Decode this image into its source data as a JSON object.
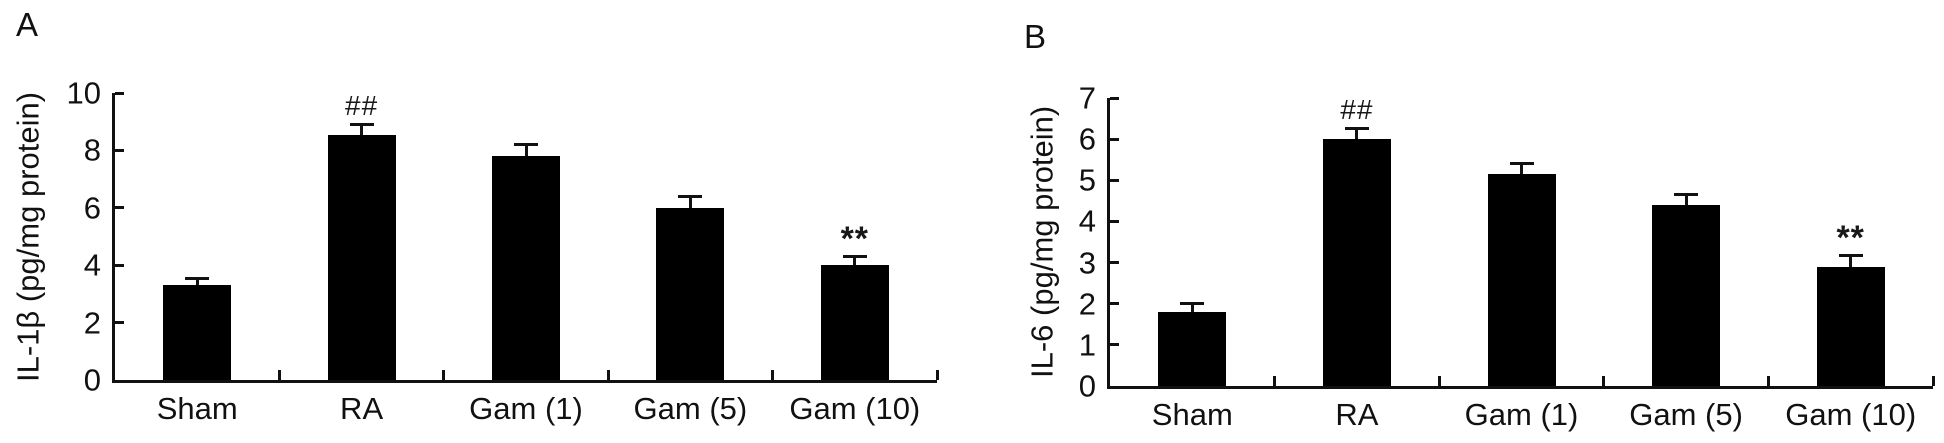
{
  "figure": {
    "background_color": "#ffffff",
    "bar_color": "#000000",
    "axis_color": "#111111",
    "text_color": "#111111"
  },
  "chart_data": [
    {
      "type": "bar",
      "panel_label": "A",
      "title": "",
      "xlabel": "",
      "ylabel": "IL-1β (pg/mg protein)",
      "categories": [
        "Sham",
        "RA",
        "Gam (1)",
        "Gam (5)",
        "Gam (10)"
      ],
      "values": [
        3.3,
        8.55,
        7.8,
        6.0,
        4.0
      ],
      "errors": [
        0.3,
        0.4,
        0.45,
        0.45,
        0.35
      ],
      "annotations": [
        {
          "category": "RA",
          "text": "##"
        },
        {
          "category": "Gam (10)",
          "text": "**"
        }
      ],
      "ylim": [
        0,
        10
      ],
      "yticks": [
        0,
        2,
        4,
        6,
        8,
        10
      ],
      "grid": false,
      "legend": "none"
    },
    {
      "type": "bar",
      "panel_label": "B",
      "title": "",
      "xlabel": "",
      "ylabel": "IL-6 (pg/mg protein)",
      "categories": [
        "Sham",
        "RA",
        "Gam (1)",
        "Gam (5)",
        "Gam (10)"
      ],
      "values": [
        1.8,
        6.0,
        5.15,
        4.4,
        2.9
      ],
      "errors": [
        0.25,
        0.3,
        0.3,
        0.3,
        0.3
      ],
      "annotations": [
        {
          "category": "RA",
          "text": "##"
        },
        {
          "category": "Gam (10)",
          "text": "**"
        }
      ],
      "ylim": [
        0,
        7
      ],
      "yticks": [
        0,
        1,
        2,
        3,
        4,
        5,
        6,
        7
      ],
      "grid": false,
      "legend": "none"
    }
  ]
}
